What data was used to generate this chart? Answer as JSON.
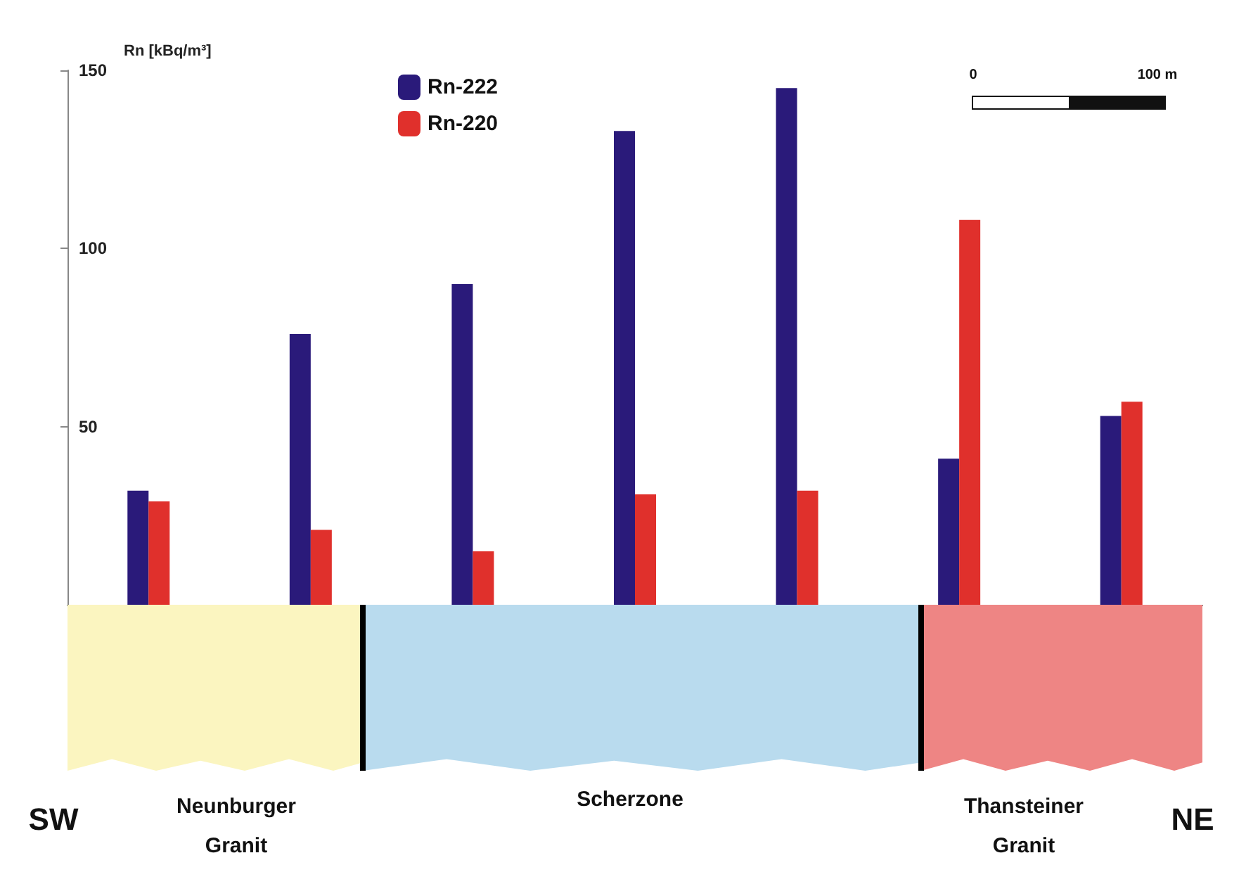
{
  "chart_data": {
    "type": "bar",
    "ylabel": "Rn [kBq/m³]",
    "categories": [
      null,
      null,
      null,
      null,
      null,
      null,
      null
    ],
    "series": [
      {
        "name": "Rn-222",
        "color": "#2a1a7a",
        "values": [
          32,
          76,
          90,
          133,
          145,
          41,
          53
        ]
      },
      {
        "name": "Rn-220",
        "color": "#e0302c",
        "values": [
          29,
          21,
          15,
          31,
          32,
          108,
          57
        ]
      }
    ],
    "ylim": [
      0,
      150
    ],
    "yticks": [
      50,
      100,
      150
    ],
    "grid": false,
    "legend": "top left",
    "annotations": [
      "SW",
      "Neunburger Granit",
      "Scherzone",
      "Thansteiner Granit",
      "NE",
      "0",
      "100 m"
    ]
  }
}
